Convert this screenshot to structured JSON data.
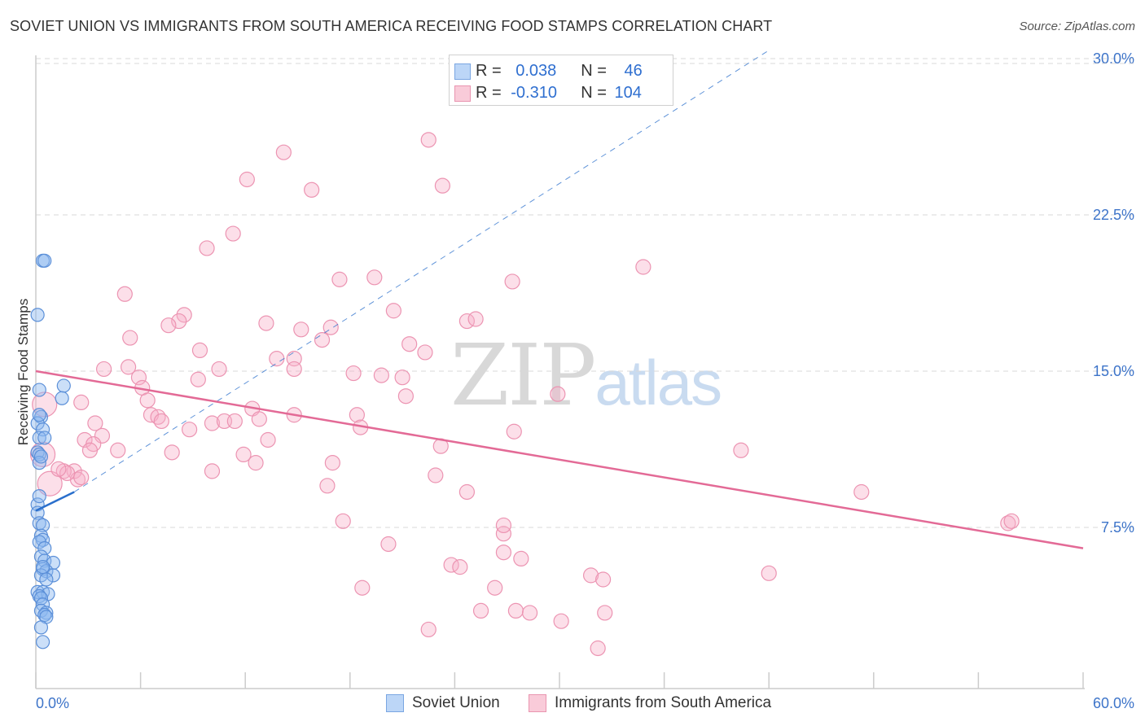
{
  "header": {
    "title": "SOVIET UNION VS IMMIGRANTS FROM SOUTH AMERICA RECEIVING FOOD STAMPS CORRELATION CHART",
    "source": "Source: ZipAtlas.com"
  },
  "watermark": {
    "zip": "ZIP",
    "atlas": "atlas"
  },
  "legend": {
    "rows": [
      {
        "r_label": "R = ",
        "r_value": "0.038",
        "n_label": "N = ",
        "n_value": "46",
        "color": "#aaccf5",
        "border": "#6a9be0"
      },
      {
        "r_label": "R = ",
        "r_value": "-0.310",
        "n_label": "N = ",
        "n_value": "104",
        "color": "#f8c0d2",
        "border": "#e88aa8"
      }
    ]
  },
  "bottom_legend": [
    {
      "label": "Soviet Union",
      "color": "#aaccf5",
      "border": "#6a9be0"
    },
    {
      "label": "Immigrants from South America",
      "color": "#f8c0d2",
      "border": "#e88aa8"
    }
  ],
  "chart_data": {
    "type": "scatter",
    "title": "SOVIET UNION VS IMMIGRANTS FROM SOUTH AMERICA RECEIVING FOOD STAMPS CORRELATION CHART",
    "xlabel": "",
    "ylabel": "Receiving Food Stamps",
    "xlim": [
      0,
      60
    ],
    "ylim": [
      0,
      30
    ],
    "x_tick_labels": [
      "0.0%",
      "60.0%"
    ],
    "y_ticks": [
      7.5,
      15.0,
      22.5,
      30.0
    ],
    "y_tick_labels": [
      "7.5%",
      "15.0%",
      "22.5%",
      "30.0%"
    ],
    "grid": true,
    "colors": {
      "soviet_fill": "rgba(140,185,240,0.45)",
      "soviet_stroke": "#5b8fd8",
      "soviet_line": "#2a6fcc",
      "immig_fill": "rgba(248,176,200,0.40)",
      "immig_stroke": "#ec94b2",
      "immig_line": "#e36a96",
      "grid": "#d9d9d9",
      "axis": "#cccccc",
      "tick_label": "#3d74c9"
    },
    "series": [
      {
        "name": "Soviet Union",
        "r": 0.038,
        "n": 46,
        "trend": {
          "x0": 0,
          "y0": 8.3,
          "x1": 2.2,
          "y1": 9.2,
          "dashed_to_x": 42,
          "dashed_to_y": 30.4
        },
        "points": [
          [
            0.4,
            20.3
          ],
          [
            0.5,
            20.3
          ],
          [
            0.1,
            17.7
          ],
          [
            1.6,
            14.3
          ],
          [
            1.5,
            13.7
          ],
          [
            0.2,
            14.1
          ],
          [
            0.3,
            12.8
          ],
          [
            0.1,
            12.5
          ],
          [
            0.4,
            12.2
          ],
          [
            0.2,
            11.8
          ],
          [
            0.5,
            11.8
          ],
          [
            0.1,
            11.1
          ],
          [
            0.2,
            11.0
          ],
          [
            0.2,
            10.6
          ],
          [
            0.1,
            8.6
          ],
          [
            0.1,
            8.2
          ],
          [
            0.2,
            7.7
          ],
          [
            0.4,
            7.6
          ],
          [
            0.3,
            7.1
          ],
          [
            0.4,
            6.9
          ],
          [
            0.2,
            6.8
          ],
          [
            0.5,
            6.5
          ],
          [
            0.3,
            6.1
          ],
          [
            0.5,
            5.9
          ],
          [
            1.0,
            5.8
          ],
          [
            0.4,
            5.5
          ],
          [
            0.6,
            5.4
          ],
          [
            1.0,
            5.2
          ],
          [
            0.3,
            5.2
          ],
          [
            0.6,
            5.0
          ],
          [
            0.1,
            4.4
          ],
          [
            0.4,
            4.4
          ],
          [
            0.7,
            4.3
          ],
          [
            0.2,
            4.2
          ],
          [
            0.3,
            4.1
          ],
          [
            0.4,
            3.8
          ],
          [
            0.3,
            3.5
          ],
          [
            0.6,
            3.4
          ],
          [
            0.5,
            3.3
          ],
          [
            0.6,
            3.2
          ],
          [
            0.3,
            2.7
          ],
          [
            0.4,
            2.0
          ],
          [
            0.2,
            9.0
          ],
          [
            0.3,
            10.9
          ],
          [
            0.2,
            12.9
          ],
          [
            0.4,
            5.6
          ]
        ]
      },
      {
        "name": "Immigrants from South America",
        "r": -0.31,
        "n": 104,
        "trend": {
          "x0": 0,
          "y0": 15.0,
          "x1": 60,
          "y1": 6.5
        },
        "points": [
          [
            22.5,
            26.1
          ],
          [
            14.2,
            25.5
          ],
          [
            12.1,
            24.2
          ],
          [
            15.8,
            23.7
          ],
          [
            23.3,
            23.9
          ],
          [
            11.3,
            21.6
          ],
          [
            9.8,
            20.9
          ],
          [
            34.8,
            20.0
          ],
          [
            17.4,
            19.4
          ],
          [
            19.4,
            19.5
          ],
          [
            27.3,
            19.3
          ],
          [
            5.1,
            18.7
          ],
          [
            20.5,
            17.9
          ],
          [
            8.5,
            17.7
          ],
          [
            8.2,
            17.4
          ],
          [
            7.6,
            17.2
          ],
          [
            13.2,
            17.3
          ],
          [
            15.2,
            17.0
          ],
          [
            16.9,
            17.1
          ],
          [
            24.7,
            17.4
          ],
          [
            25.2,
            17.5
          ],
          [
            5.4,
            16.6
          ],
          [
            16.4,
            16.5
          ],
          [
            21.4,
            16.3
          ],
          [
            9.4,
            16.0
          ],
          [
            13.8,
            15.6
          ],
          [
            14.8,
            15.6
          ],
          [
            22.3,
            15.9
          ],
          [
            3.9,
            15.1
          ],
          [
            5.3,
            15.2
          ],
          [
            10.5,
            15.1
          ],
          [
            14.8,
            15.1
          ],
          [
            5.9,
            14.7
          ],
          [
            9.3,
            14.6
          ],
          [
            18.2,
            14.9
          ],
          [
            19.8,
            14.8
          ],
          [
            21.0,
            14.7
          ],
          [
            6.1,
            14.2
          ],
          [
            6.4,
            13.6
          ],
          [
            29.9,
            13.9
          ],
          [
            21.2,
            13.8
          ],
          [
            2.6,
            13.5
          ],
          [
            12.4,
            13.2
          ],
          [
            6.6,
            12.9
          ],
          [
            7.0,
            12.8
          ],
          [
            12.8,
            12.7
          ],
          [
            14.8,
            12.9
          ],
          [
            18.4,
            12.9
          ],
          [
            3.4,
            12.5
          ],
          [
            7.2,
            12.6
          ],
          [
            10.1,
            12.5
          ],
          [
            10.8,
            12.6
          ],
          [
            11.4,
            12.6
          ],
          [
            18.6,
            12.3
          ],
          [
            3.8,
            11.9
          ],
          [
            2.8,
            11.7
          ],
          [
            8.8,
            12.2
          ],
          [
            13.3,
            11.7
          ],
          [
            27.4,
            12.1
          ],
          [
            3.3,
            11.5
          ],
          [
            3.1,
            11.2
          ],
          [
            4.7,
            11.2
          ],
          [
            7.8,
            11.1
          ],
          [
            11.9,
            11.0
          ],
          [
            23.2,
            11.4
          ],
          [
            40.4,
            11.2
          ],
          [
            12.6,
            10.6
          ],
          [
            17.0,
            10.6
          ],
          [
            2.2,
            10.2
          ],
          [
            1.6,
            10.2
          ],
          [
            2.4,
            9.8
          ],
          [
            10.1,
            10.2
          ],
          [
            22.9,
            10.0
          ],
          [
            16.7,
            9.5
          ],
          [
            24.7,
            9.2
          ],
          [
            47.3,
            9.2
          ],
          [
            55.7,
            7.7
          ],
          [
            55.9,
            7.8
          ],
          [
            17.6,
            7.8
          ],
          [
            26.8,
            7.2
          ],
          [
            20.2,
            6.7
          ],
          [
            26.8,
            6.3
          ],
          [
            27.8,
            6.0
          ],
          [
            23.8,
            5.7
          ],
          [
            24.3,
            5.6
          ],
          [
            31.8,
            5.2
          ],
          [
            32.5,
            5.0
          ],
          [
            42.0,
            5.3
          ],
          [
            18.7,
            4.6
          ],
          [
            26.3,
            4.6
          ],
          [
            25.5,
            3.5
          ],
          [
            27.5,
            3.5
          ],
          [
            28.3,
            3.4
          ],
          [
            32.6,
            3.4
          ],
          [
            30.1,
            3.0
          ],
          [
            22.5,
            2.6
          ],
          [
            32.2,
            1.7
          ],
          [
            0.5,
            13.4
          ],
          [
            0.4,
            11.0
          ],
          [
            0.8,
            9.6
          ],
          [
            1.8,
            10.1
          ],
          [
            1.3,
            10.3
          ],
          [
            2.6,
            9.9
          ],
          [
            26.8,
            7.6
          ]
        ],
        "big_points": [
          [
            0.5,
            13.4
          ],
          [
            0.4,
            11.0
          ],
          [
            0.8,
            9.6
          ]
        ]
      }
    ]
  }
}
